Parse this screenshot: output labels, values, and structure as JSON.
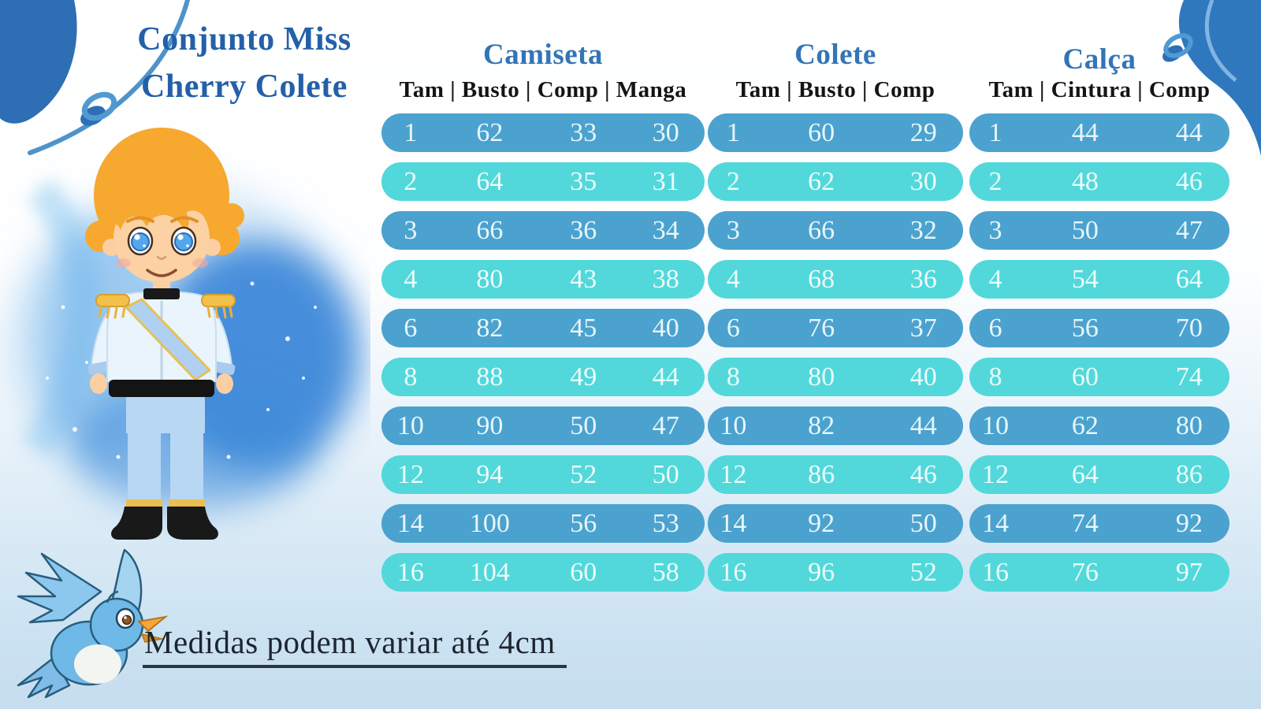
{
  "header": {
    "title_line1": "Conjunto Miss",
    "title_line2": "Cherry Colete"
  },
  "footer": {
    "note": "Medidas podem variar até 4cm"
  },
  "colors": {
    "row_dark_blue": "#4BA2CF",
    "row_turquoise": "#52D8DA",
    "table_title_blue": "#3375B6",
    "brand_title_blue": "#2360A8",
    "corner_blob_blue": "#2D6EB5",
    "column_header_black": "#141414"
  },
  "icons": {
    "prince": "prince-boy-illustration",
    "bird": "bluebird-illustration",
    "blob_left": "corner-blob-top-left",
    "blob_right": "corner-blob-top-right",
    "ring": "ring-ornament"
  },
  "chart_data": [
    {
      "type": "table",
      "title": "Camiseta",
      "columns": [
        "Tam",
        "Busto",
        "Comp",
        "Manga"
      ],
      "rows": [
        [
          "1",
          "62",
          "33",
          "30"
        ],
        [
          "2",
          "64",
          "35",
          "31"
        ],
        [
          "3",
          "66",
          "36",
          "34"
        ],
        [
          "4",
          "80",
          "43",
          "38"
        ],
        [
          "6",
          "82",
          "45",
          "40"
        ],
        [
          "8",
          "88",
          "49",
          "44"
        ],
        [
          "10",
          "90",
          "50",
          "47"
        ],
        [
          "12",
          "94",
          "52",
          "50"
        ],
        [
          "14",
          "100",
          "56",
          "53"
        ],
        [
          "16",
          "104",
          "60",
          "58"
        ]
      ]
    },
    {
      "type": "table",
      "title": "Colete",
      "columns": [
        "Tam",
        "Busto",
        "Comp"
      ],
      "rows": [
        [
          "1",
          "60",
          "29"
        ],
        [
          "2",
          "62",
          "30"
        ],
        [
          "3",
          "66",
          "32"
        ],
        [
          "4",
          "68",
          "36"
        ],
        [
          "6",
          "76",
          "37"
        ],
        [
          "8",
          "80",
          "40"
        ],
        [
          "10",
          "82",
          "44"
        ],
        [
          "12",
          "86",
          "46"
        ],
        [
          "14",
          "92",
          "50"
        ],
        [
          "16",
          "96",
          "52"
        ]
      ]
    },
    {
      "type": "table",
      "title": "Calça",
      "columns": [
        "Tam",
        "Cintura",
        "Comp"
      ],
      "rows": [
        [
          "1",
          "44",
          "44"
        ],
        [
          "2",
          "48",
          "46"
        ],
        [
          "3",
          "50",
          "47"
        ],
        [
          "4",
          "54",
          "64"
        ],
        [
          "6",
          "56",
          "70"
        ],
        [
          "8",
          "60",
          "74"
        ],
        [
          "10",
          "62",
          "80"
        ],
        [
          "12",
          "64",
          "86"
        ],
        [
          "14",
          "74",
          "92"
        ],
        [
          "16",
          "76",
          "97"
        ]
      ]
    }
  ]
}
